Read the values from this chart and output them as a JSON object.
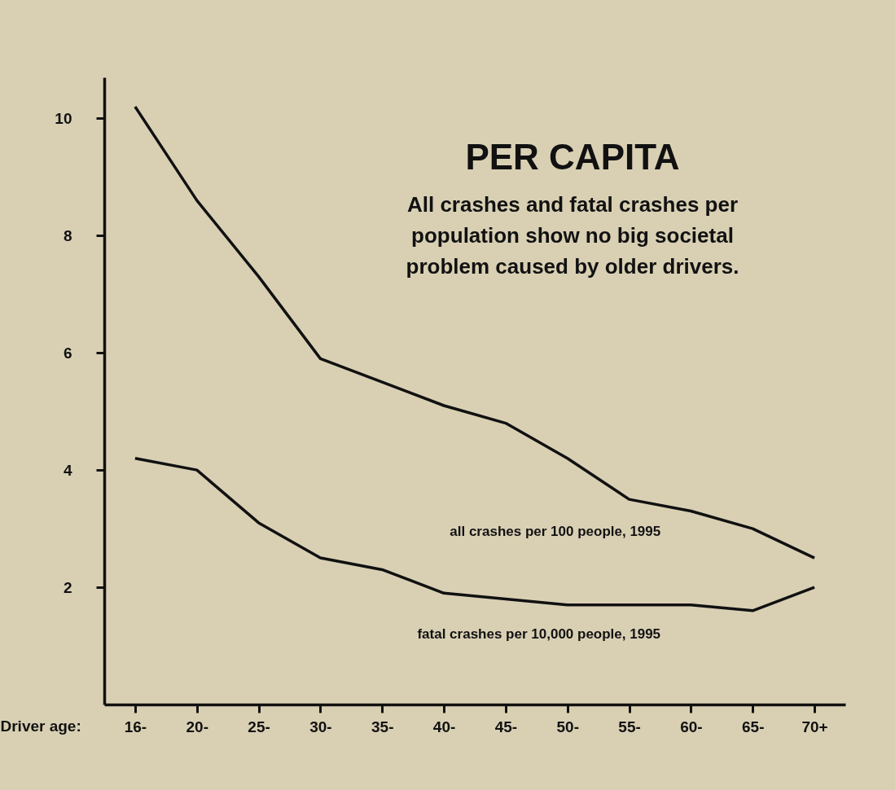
{
  "chart_data": {
    "type": "line",
    "title": "PER CAPITA",
    "subtitle": "All crashes and fatal crashes per population show no big societal problem caused by older drivers.",
    "xlabel": "Driver age:",
    "categories": [
      "16-",
      "20-",
      "25-",
      "30-",
      "35-",
      "40-",
      "45-",
      "50-",
      "55-",
      "60-",
      "65-",
      "70+"
    ],
    "series": [
      {
        "name": "all crashes per 100 people, 1995",
        "color": "#111111",
        "values": [
          10.2,
          8.6,
          7.3,
          5.9,
          5.5,
          5.1,
          4.8,
          4.2,
          3.5,
          3.3,
          3.0,
          2.5
        ]
      },
      {
        "name": "fatal crashes per 10,000 people, 1995",
        "color": "#111111",
        "values": [
          4.2,
          4.0,
          3.1,
          2.5,
          2.3,
          1.9,
          1.8,
          1.7,
          1.7,
          1.7,
          1.6,
          2.0
        ]
      }
    ],
    "ylim": [
      0,
      10.7
    ],
    "yticks": [
      2,
      4,
      6,
      8,
      10
    ],
    "grid": false,
    "marker": "none",
    "line_style": "solid"
  }
}
